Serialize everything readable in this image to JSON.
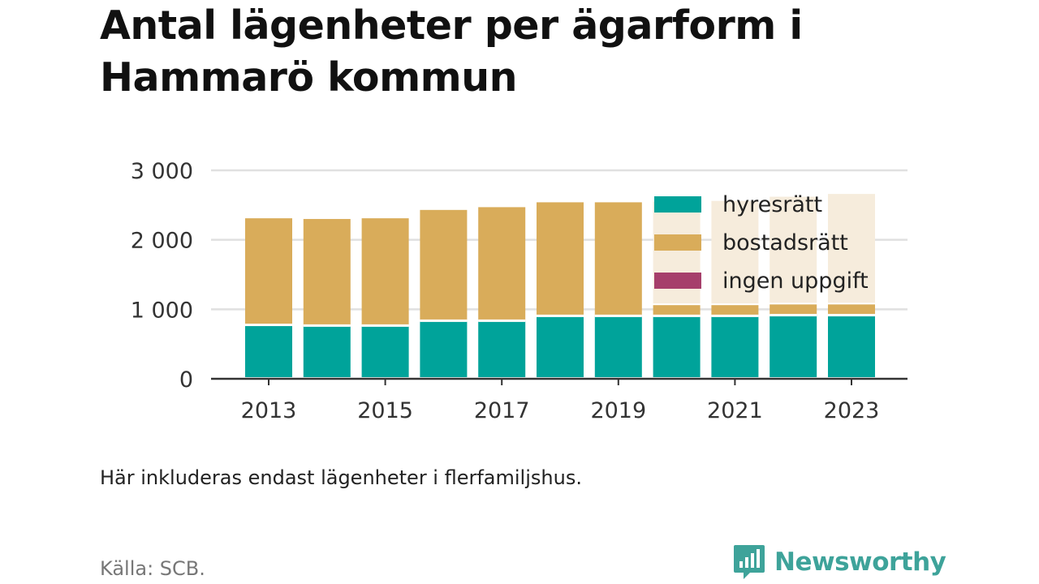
{
  "title": "Antal lägenheter per ägarform i Hammarö kommun",
  "note": "Här inkluderas endast lägenheter i flerfamiljshus.",
  "source": "Källa: SCB.",
  "brand": "Newsworthy",
  "colors": {
    "hyresratt": "#00a39a",
    "bostadsratt": "#d9ac5a",
    "ingen_uppgift": "#a63f6b",
    "grid": "#e0e0e0",
    "axis": "#333333",
    "brand": "#3ea39a"
  },
  "chart_data": {
    "type": "bar",
    "stacked": true,
    "categories": [
      "2013",
      "2014",
      "2015",
      "2016",
      "2017",
      "2018",
      "2019",
      "2020",
      "2021",
      "2022",
      "2023"
    ],
    "x_tick_labels": [
      "2013",
      "2015",
      "2017",
      "2019",
      "2021",
      "2023"
    ],
    "series": [
      {
        "name": "hyresrätt",
        "values": [
          770,
          760,
          760,
          830,
          830,
          900,
          900,
          900,
          900,
          910,
          910
        ]
      },
      {
        "name": "bostadsrätt",
        "values": [
          1540,
          1540,
          1550,
          1600,
          1640,
          1640,
          1640,
          160,
          160,
          160,
          160
        ]
      },
      {
        "name": "ingen uppgift",
        "values": [
          0,
          0,
          0,
          0,
          0,
          0,
          0,
          0,
          0,
          0,
          0
        ]
      }
    ],
    "ylim": [
      0,
      3000
    ],
    "y_ticks": [
      0,
      1000,
      2000,
      3000
    ],
    "y_tick_labels": [
      "0",
      "1 000",
      "2 000",
      "3 000"
    ],
    "grid": true,
    "legend_position": "top-right"
  }
}
